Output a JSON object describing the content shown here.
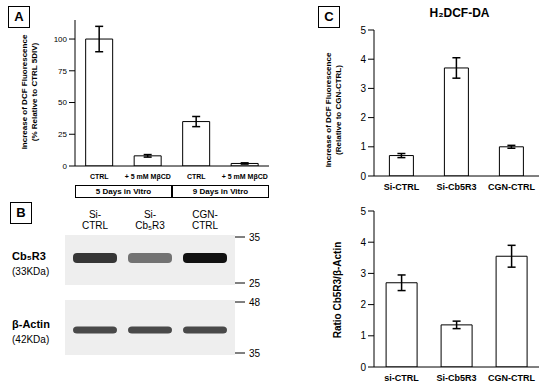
{
  "chart_data": [
    {
      "panel": "A",
      "type": "bar",
      "ylabel": [
        "Increase of DCF Fluorescence",
        "(% Relative to CTRL 5DIV)"
      ],
      "categories": [
        "CTRL",
        "+ 5 mM MβCD",
        "CTRL",
        "+ 5 mM MβCD"
      ],
      "values": [
        100,
        8,
        35,
        2
      ],
      "errors": [
        10,
        1,
        4,
        0.5
      ],
      "groups": [
        "5 Days in Vitro",
        "9 Days in Vitro"
      ],
      "ylim": [
        0,
        115
      ],
      "yticks": [
        0,
        25,
        50,
        75,
        100
      ],
      "color": "#ffffff"
    },
    {
      "type": "bar",
      "ylabel": [
        "Ratio Cb5R3/β-Actin"
      ],
      "categories": [
        "si-CTRL",
        "Si-Cb5R3",
        "CGN-CTRL"
      ],
      "values": [
        2.7,
        1.35,
        3.55
      ],
      "errors": [
        0.25,
        0.12,
        0.35
      ],
      "ylim": [
        0,
        5
      ],
      "yticks": [
        0,
        1,
        2,
        3,
        4,
        5
      ],
      "color": "#ffffff"
    },
    {
      "panel": "C",
      "type": "bar",
      "title": "H₂DCF-DA",
      "ylabel": [
        "Increase of DCF Fluorescence",
        "(Relative to CGN-CTRL)"
      ],
      "categories": [
        "Si-CTRL",
        "Si-Cb5R3",
        "CGN-CTRL"
      ],
      "values": [
        0.7,
        3.7,
        1.0
      ],
      "errors": [
        0.07,
        0.35,
        0.05
      ],
      "ylim": [
        0,
        5
      ],
      "yticks": [
        0,
        1,
        2,
        3,
        4,
        5
      ],
      "color": "#ffffff"
    }
  ],
  "blot": {
    "panel": "B",
    "lanes": [
      "Si-CTRL",
      "Si-Cb₅R3",
      "CGN-CTRL"
    ],
    "blots": [
      {
        "protein": "Cb₅R3",
        "mass": "(33KDa)",
        "markers": [
          35,
          25
        ]
      },
      {
        "protein": "β-Actin",
        "mass": "(42KDa)",
        "markers": [
          48,
          35
        ]
      }
    ]
  }
}
